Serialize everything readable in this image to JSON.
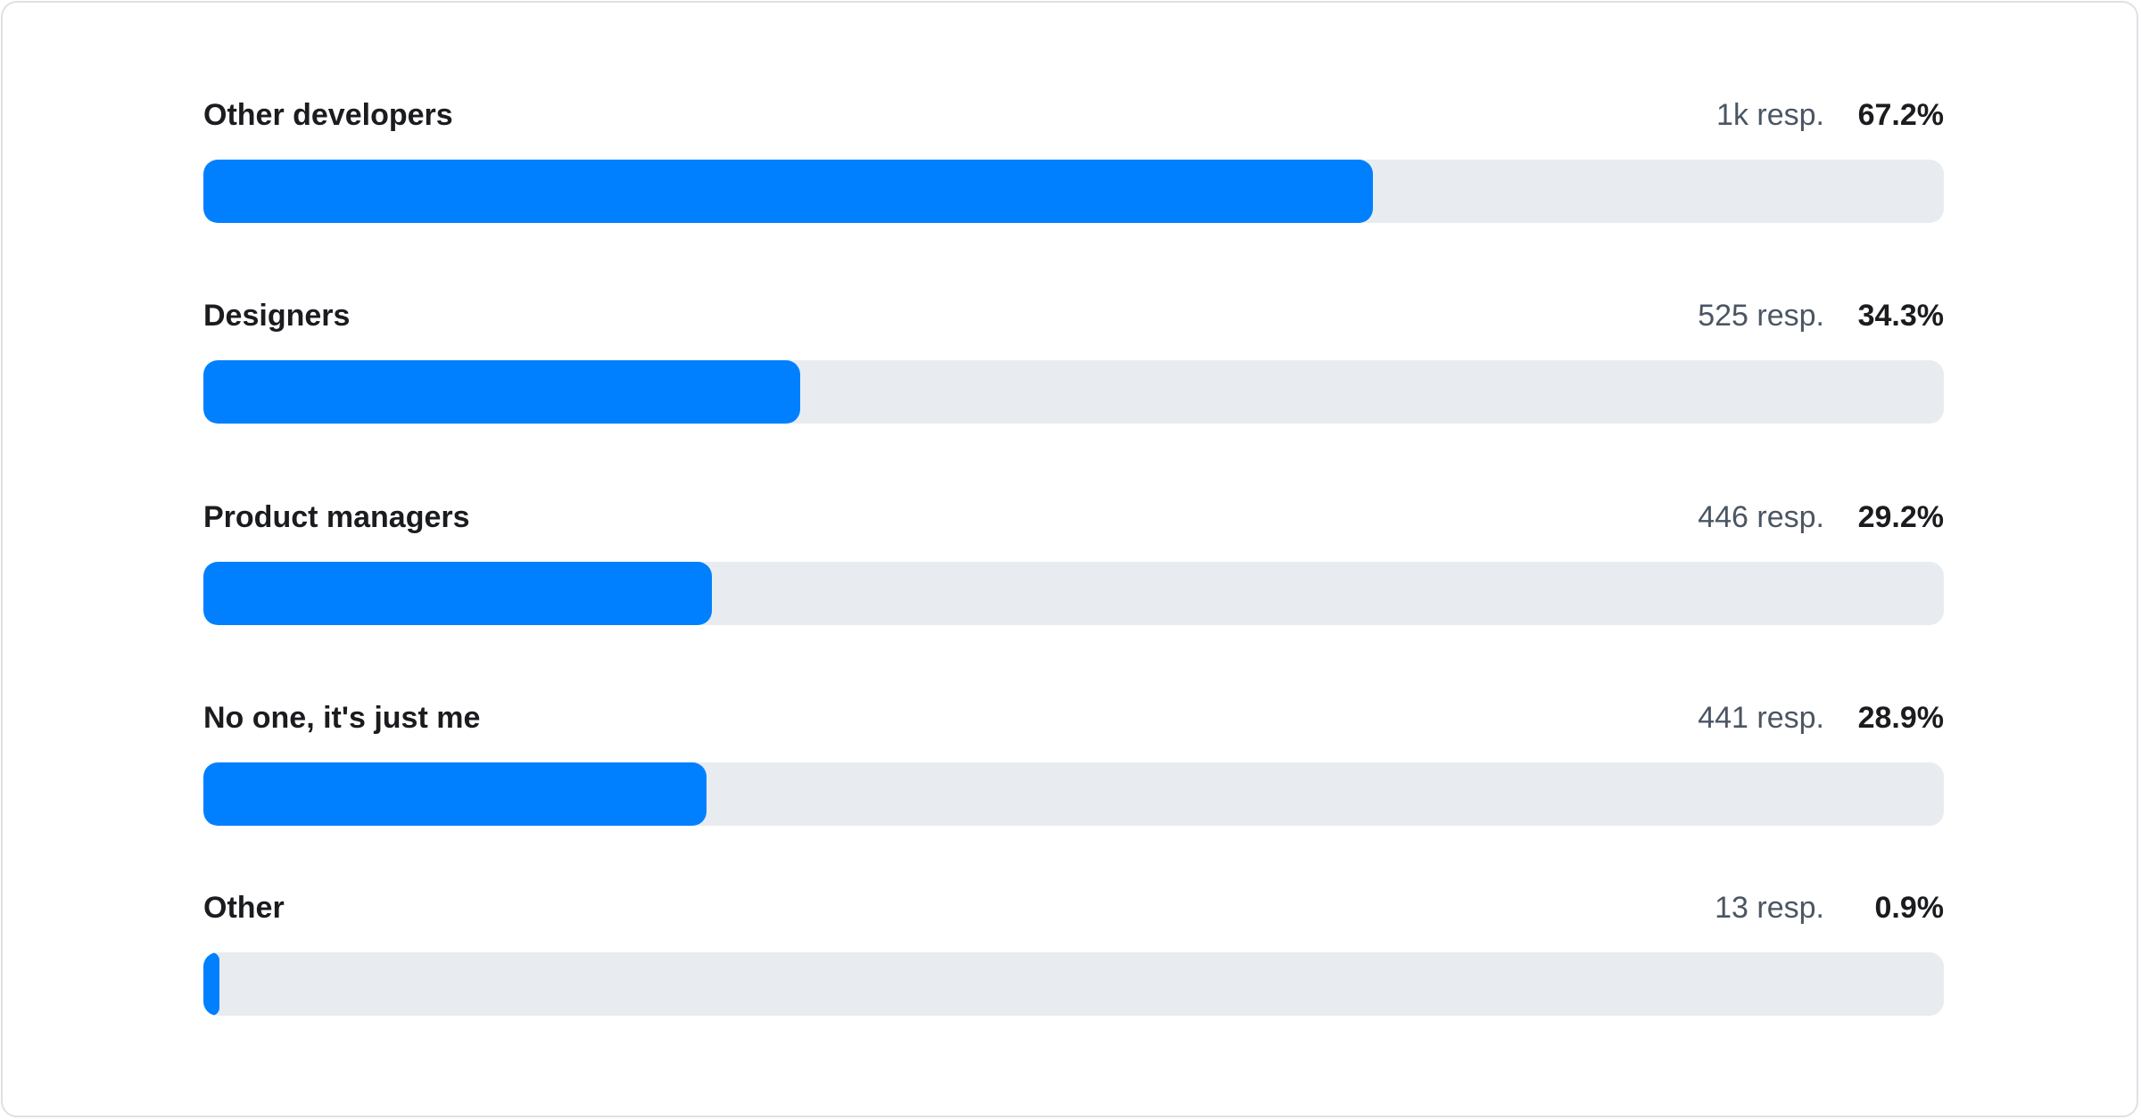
{
  "chart_data": {
    "type": "bar",
    "orientation": "horizontal",
    "xlim": [
      0,
      100
    ],
    "bar_color": "#0080ff",
    "track_color": "#e8ecf1",
    "categories": [
      "Other developers",
      "Designers",
      "Product managers",
      "No one, it's just me",
      "Other"
    ],
    "responses": [
      "1k resp.",
      "525 resp.",
      "446 resp.",
      "441 resp.",
      "13 resp."
    ],
    "percent_labels": [
      "67.2%",
      "34.3%",
      "29.2%",
      "28.9%",
      "0.9%"
    ],
    "values": [
      67.2,
      34.3,
      29.2,
      28.9,
      0.9
    ]
  }
}
